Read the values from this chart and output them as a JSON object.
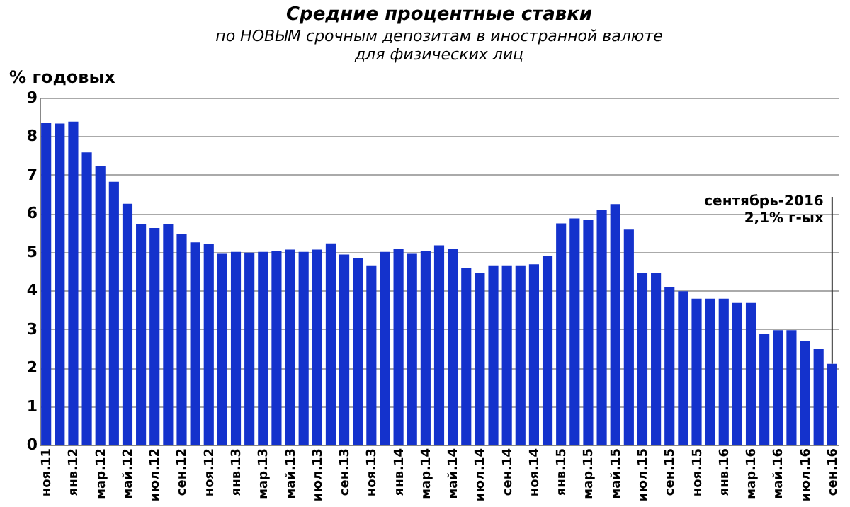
{
  "chart_data": {
    "type": "bar",
    "title": "Средние процентные ставки",
    "subtitle": "по НОВЫМ срочным депозитам в иностранной валюте\nдля физических лиц",
    "ylabel": "% годовых",
    "categories": [
      "ноя.11",
      null,
      "янв.12",
      null,
      "мар.12",
      null,
      "май.12",
      null,
      "июл.12",
      null,
      "сен.12",
      null,
      "ноя.12",
      null,
      "янв.13",
      null,
      "мар.13",
      null,
      "май.13",
      null,
      "июл.13",
      null,
      "сен.13",
      null,
      "ноя.13",
      null,
      "янв.14",
      null,
      "мар.14",
      null,
      "май.14",
      null,
      "июл.14",
      null,
      "сен.14",
      null,
      "ноя.14",
      null,
      "янв.15",
      null,
      "мар.15",
      null,
      "май.15",
      null,
      "июл.15",
      null,
      "сен.15",
      null,
      "ноя.15",
      null,
      "янв.16",
      null,
      "мар.16",
      null,
      "май.16",
      null,
      "июл.16",
      null,
      "сен.16"
    ],
    "values": [
      8.35,
      8.33,
      8.38,
      7.58,
      7.22,
      6.82,
      6.25,
      5.73,
      5.62,
      5.73,
      5.47,
      5.25,
      5.2,
      4.95,
      5.0,
      4.98,
      5.0,
      5.03,
      5.06,
      5.0,
      5.06,
      5.22,
      4.93,
      4.85,
      4.65,
      5.0,
      5.08,
      4.95,
      5.03,
      5.17,
      5.08,
      4.58,
      4.46,
      4.65,
      4.65,
      4.65,
      4.68,
      4.9,
      5.74,
      5.87,
      5.84,
      6.08,
      6.24,
      5.58,
      4.46,
      4.46,
      4.08,
      3.98,
      3.79,
      3.79,
      3.79,
      3.68,
      3.68,
      2.87,
      2.97,
      2.97,
      2.68,
      2.48,
      2.1
    ],
    "color": "#1432cc",
    "ylim": [
      0,
      9
    ],
    "yticks": [
      0,
      1,
      2,
      3,
      4,
      5,
      6,
      7,
      8,
      9
    ],
    "grid": "y",
    "annotations": [
      {
        "text": "сентябрь-2016\n2,1% г-ых",
        "x": "сен.16",
        "y": 2.1
      }
    ]
  }
}
